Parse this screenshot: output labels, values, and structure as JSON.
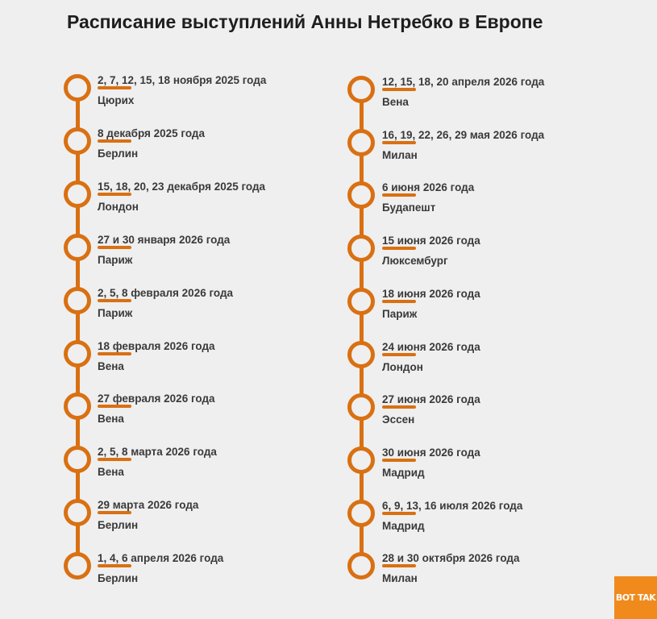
{
  "title": "Расписание выступлений Анны Нетребко в Европе",
  "logo": {
    "text": "BOT TAK"
  },
  "colors": {
    "accent": "#d97012",
    "background": "#efefef",
    "logo_bg": "#f08a1c"
  },
  "left_column": [
    {
      "date": "2, 7, 12, 15, 18 ноября 2025 года",
      "city": "Цюрих"
    },
    {
      "date": "8 декабря 2025 года",
      "city": "Берлин"
    },
    {
      "date": "15, 18, 20, 23 декабря 2025 года",
      "city": "Лондон"
    },
    {
      "date": "27 и 30 января 2026 года",
      "city": "Париж"
    },
    {
      "date": "2, 5, 8 февраля 2026 года",
      "city": "Париж"
    },
    {
      "date": "18 февраля 2026 года",
      "city": "Вена"
    },
    {
      "date": "27 февраля 2026 года",
      "city": "Вена"
    },
    {
      "date": "2, 5, 8 марта 2026 года",
      "city": "Вена"
    },
    {
      "date": "29 марта 2026 года",
      "city": "Берлин"
    },
    {
      "date": "1, 4, 6 апреля 2026 года",
      "city": "Берлин"
    }
  ],
  "right_column": [
    {
      "date": "12, 15, 18, 20 апреля 2026 года",
      "city": "Вена"
    },
    {
      "date": "16, 19, 22, 26, 29 мая 2026 года",
      "city": "Милан"
    },
    {
      "date": "6 июня 2026 года",
      "city": "Будапешт"
    },
    {
      "date": "15 июня 2026 года",
      "city": "Люксембург"
    },
    {
      "date": "18 июня 2026 года",
      "city": "Париж"
    },
    {
      "date": "24 июня 2026 года",
      "city": "Лондон"
    },
    {
      "date": "27 июня 2026 года",
      "city": "Эссен"
    },
    {
      "date": "30 июня 2026 года",
      "city": "Мадрид"
    },
    {
      "date": "6, 9, 13, 16 июля 2026 года",
      "city": "Мадрид"
    },
    {
      "date": "28 и 30 октября 2026 года",
      "city": "Милан"
    }
  ]
}
